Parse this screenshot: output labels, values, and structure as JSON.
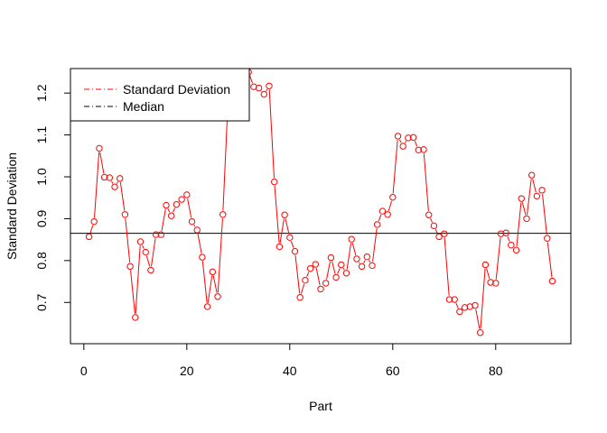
{
  "chart_data": {
    "type": "line",
    "title": "",
    "xlabel": "Part",
    "ylabel": "Standard Deviation",
    "xlim": [
      -2.6,
      94.6
    ],
    "ylim": [
      0.6015,
      1.2585
    ],
    "x_ticks": [
      0,
      20,
      40,
      60,
      80
    ],
    "y_ticks": [
      0.7,
      0.8,
      0.9,
      1.0,
      1.1,
      1.2
    ],
    "y_tick_labels": [
      "0.7",
      "0.8",
      "0.9",
      "1.0",
      "1.1",
      "1.2"
    ],
    "grid": false,
    "legend": {
      "position": "top-left",
      "entries": [
        {
          "label": "Standard Deviation",
          "color": "#ff0000",
          "line": "dashdot-red"
        },
        {
          "label": "Median",
          "color": "#000000",
          "line": "dashdot-black"
        }
      ]
    },
    "median": 0.865,
    "series": [
      {
        "name": "Standard Deviation",
        "color": "#ff0000",
        "marker": "open-circle",
        "x": [
          1,
          2,
          3,
          4,
          5,
          6,
          7,
          8,
          9,
          10,
          11,
          12,
          13,
          14,
          15,
          16,
          17,
          18,
          19,
          20,
          21,
          22,
          23,
          24,
          25,
          26,
          27,
          28,
          29,
          30,
          31,
          32,
          33,
          34,
          35,
          36,
          37,
          38,
          39,
          40,
          41,
          42,
          43,
          44,
          45,
          46,
          47,
          48,
          49,
          50,
          51,
          52,
          53,
          54,
          55,
          56,
          57,
          58,
          59,
          60,
          61,
          62,
          63,
          64,
          65,
          66,
          67,
          68,
          69,
          70,
          71,
          72,
          73,
          74,
          75,
          76,
          77,
          78,
          79,
          80,
          81,
          82,
          83,
          84,
          85,
          86,
          87,
          88,
          89,
          90,
          91
        ],
        "values": [
          0.857,
          0.893,
          1.068,
          0.999,
          0.998,
          0.976,
          0.996,
          0.91,
          0.786,
          0.664,
          0.845,
          0.82,
          0.777,
          0.862,
          0.862,
          0.932,
          0.907,
          0.934,
          0.946,
          0.957,
          0.893,
          0.873,
          0.808,
          0.69,
          0.773,
          0.714,
          0.91,
          1.18,
          1.3,
          1.3,
          1.3,
          1.25,
          1.215,
          1.212,
          1.197,
          1.217,
          0.988,
          0.833,
          0.909,
          0.855,
          0.822,
          0.712,
          0.753,
          0.781,
          0.791,
          0.732,
          0.746,
          0.807,
          0.76,
          0.79,
          0.77,
          0.851,
          0.804,
          0.786,
          0.809,
          0.788,
          0.886,
          0.918,
          0.91,
          0.951,
          1.097,
          1.073,
          1.093,
          1.094,
          1.064,
          1.065,
          0.909,
          0.883,
          0.857,
          0.864,
          0.707,
          0.707,
          0.678,
          0.688,
          0.69,
          0.693,
          0.628,
          0.79,
          0.748,
          0.746,
          0.864,
          0.866,
          0.837,
          0.825,
          0.948,
          0.9,
          1.004,
          0.954,
          0.968,
          0.853,
          0.751
        ]
      }
    ]
  }
}
